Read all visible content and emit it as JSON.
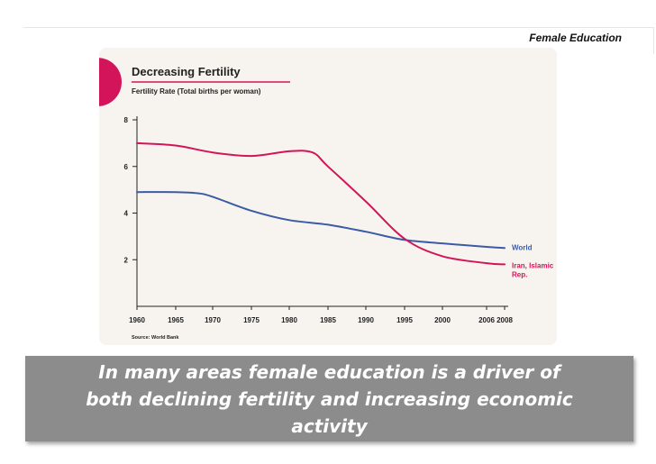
{
  "header": {
    "title": "Female Education"
  },
  "caption": {
    "text": "In many areas female education is a driver of both declining fertility and increasing economic activity"
  },
  "colors": {
    "accent": "#d4145a",
    "world": "#3b5ba5",
    "iran": "#d4145a",
    "panel": "#f7f4ef",
    "caption_bg": "#8c8c8c"
  },
  "chart_data": {
    "type": "line",
    "title": "Decreasing Fertility",
    "subtitle": "Fertility Rate (Total births per woman)",
    "source": "Source: World Bank",
    "xlabel": "",
    "ylabel": "",
    "xlim": [
      1960,
      2008
    ],
    "ylim": [
      0,
      8
    ],
    "x_ticks": [
      1960,
      1965,
      1970,
      1975,
      1980,
      1985,
      1990,
      1995,
      2000,
      2006,
      2008
    ],
    "y_ticks": [
      2,
      4,
      6,
      8
    ],
    "grid": false,
    "series": [
      {
        "name": "World",
        "color": "#3b5ba5",
        "x": [
          1960,
          1965,
          1968,
          1970,
          1975,
          1980,
          1985,
          1990,
          1995,
          2000,
          2006,
          2008
        ],
        "y": [
          4.9,
          4.9,
          4.85,
          4.7,
          4.1,
          3.7,
          3.5,
          3.2,
          2.85,
          2.7,
          2.55,
          2.5
        ]
      },
      {
        "name": "Iran, Islamic Rep.",
        "color": "#d4145a",
        "x": [
          1960,
          1965,
          1970,
          1975,
          1980,
          1983,
          1985,
          1990,
          1995,
          2000,
          2006,
          2008
        ],
        "y": [
          7.0,
          6.9,
          6.6,
          6.45,
          6.65,
          6.6,
          6.0,
          4.5,
          2.9,
          2.15,
          1.85,
          1.8
        ]
      }
    ]
  }
}
